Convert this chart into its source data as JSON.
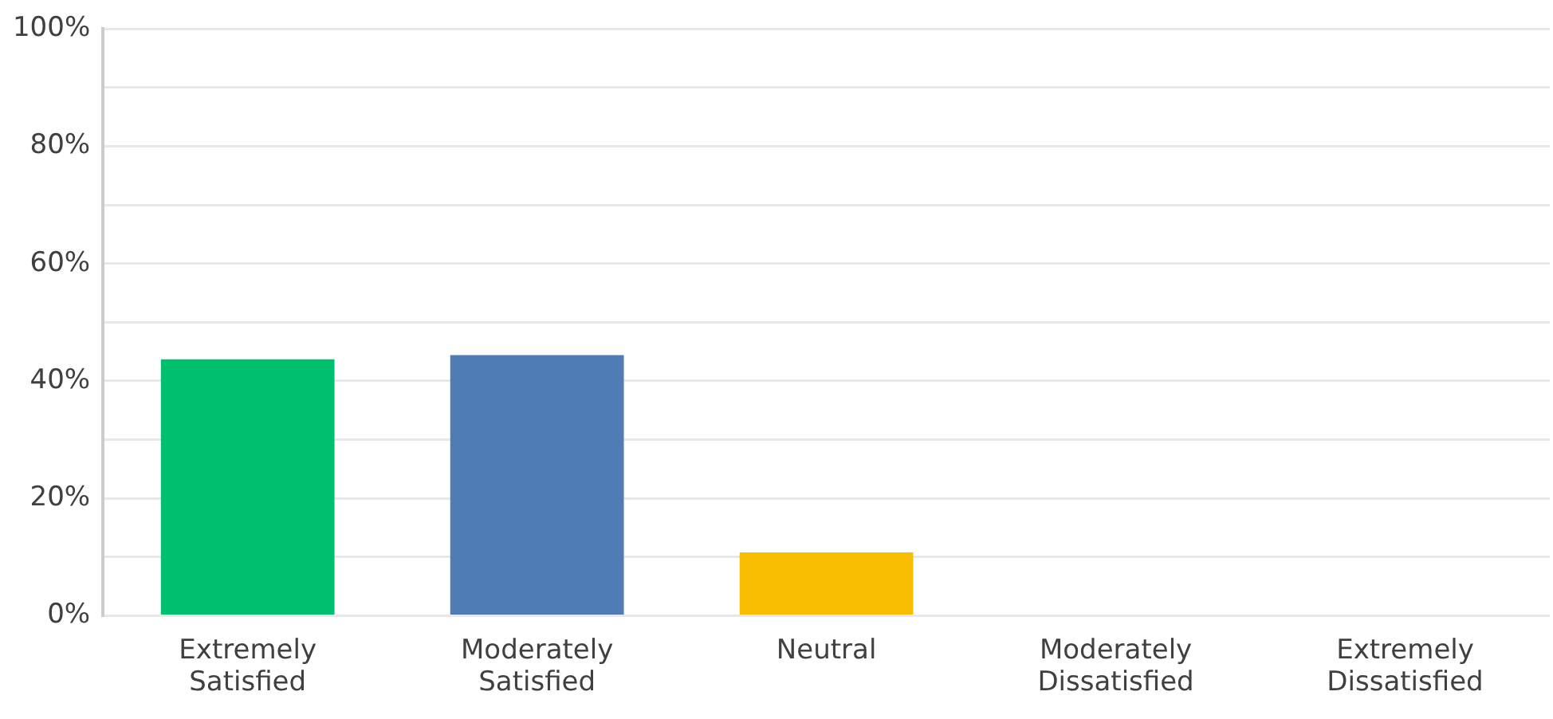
{
  "chart_data": {
    "type": "bar",
    "categories": [
      "Extremely Satisfied",
      "Moderately Satisfied",
      "Neutral",
      "Moderately Dissatisfied",
      "Extremely Dissatisfied"
    ],
    "values": [
      43.7,
      44.4,
      10.8,
      0,
      0
    ],
    "colors": [
      "#00bf6f",
      "#507cb6",
      "#f9be00",
      "#6bc8cd",
      "#ff8b4f"
    ],
    "ylim": [
      0,
      100
    ],
    "yticks": [
      {
        "value": 0,
        "label": "0%"
      },
      {
        "value": 10,
        "label": null
      },
      {
        "value": 20,
        "label": "20%"
      },
      {
        "value": 30,
        "label": null
      },
      {
        "value": 40,
        "label": "40%"
      },
      {
        "value": 50,
        "label": null
      },
      {
        "value": 60,
        "label": "60%"
      },
      {
        "value": 70,
        "label": null
      },
      {
        "value": 80,
        "label": "80%"
      },
      {
        "value": 90,
        "label": null
      },
      {
        "value": 100,
        "label": "100%"
      }
    ],
    "grid": "y",
    "legend": false
  }
}
